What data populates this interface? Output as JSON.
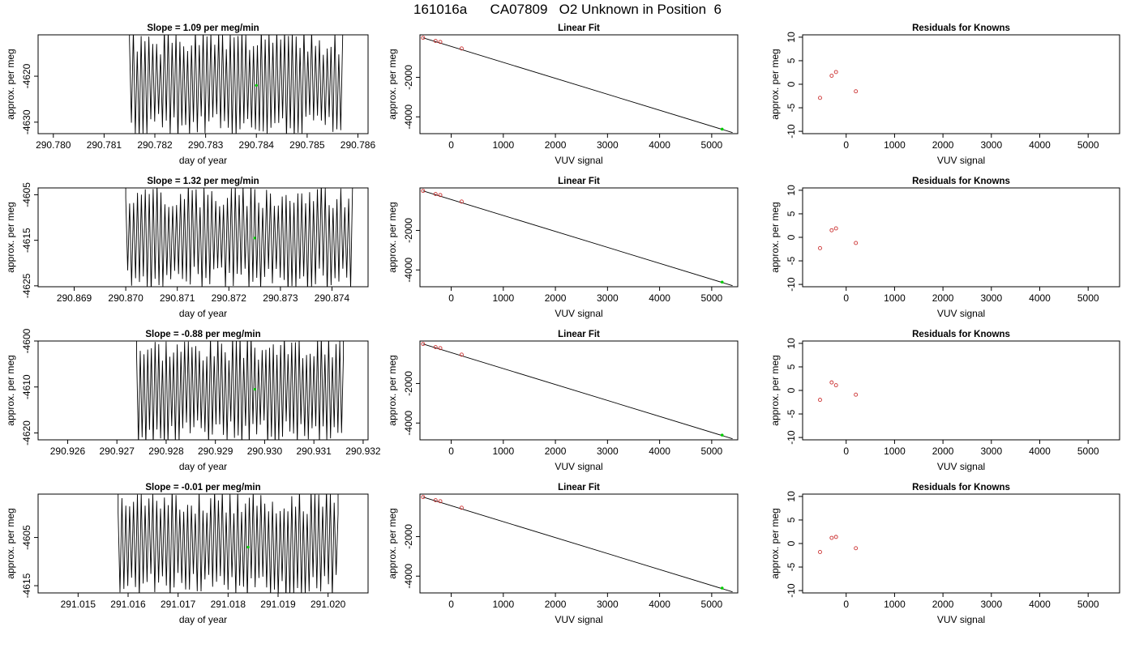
{
  "page_title": "161016a      CA07809   O2 Unknown in Position  6",
  "chart_data": [
    {
      "type": "line",
      "panel": "trace",
      "row": 0,
      "title": "Slope =  1.09  per meg/min",
      "xlabel": "day of year",
      "ylabel": "approx. per meg",
      "xlim": [
        290.7797,
        290.7862
      ],
      "ylim": [
        -4632.5,
        -4611
      ],
      "xticks": [
        290.78,
        290.781,
        290.782,
        290.783,
        290.784,
        290.785,
        290.786
      ],
      "xtick_labels": [
        "290.780",
        "290.781",
        "290.782",
        "290.783",
        "290.784",
        "290.785",
        "290.786"
      ],
      "yticks": [
        -4620,
        -4630
      ],
      "ytick_labels": [
        "-4620",
        "-4630"
      ],
      "trace": {
        "start": 290.7815,
        "end": 290.7857,
        "low": -4632.5,
        "high": -4611,
        "cycles": 55,
        "seed": 1
      },
      "marker": {
        "x": 290.784,
        "y": -4622.0,
        "color": "#00cc00"
      }
    },
    {
      "type": "scatter",
      "panel": "fit",
      "row": 0,
      "title": "Linear Fit",
      "xlabel": "VUV signal",
      "ylabel": "approx. per meg",
      "xlim": [
        -600,
        5500
      ],
      "ylim": [
        -4850,
        150
      ],
      "xticks": [
        0,
        1000,
        2000,
        3000,
        4000,
        5000
      ],
      "xtick_labels": [
        "0",
        "1000",
        "2000",
        "3000",
        "4000",
        "5000"
      ],
      "yticks": [
        -2000,
        -4000
      ],
      "ytick_labels": [
        "-2000",
        "-4000"
      ],
      "points": [
        {
          "x": -540,
          "y": 0
        },
        {
          "x": -300,
          "y": -160
        },
        {
          "x": -210,
          "y": -210
        },
        {
          "x": 200,
          "y": -540
        }
      ],
      "unknown": {
        "x": 5200,
        "y": -4622
      },
      "fit_line": {
        "x": [
          -540,
          5400
        ],
        "y": [
          -2,
          -4795
        ]
      },
      "point_color": "#cc3333",
      "unknown_color": "#00cc00"
    },
    {
      "type": "scatter",
      "panel": "residuals",
      "row": 0,
      "title": "Residuals for Knowns",
      "xlabel": "VUV signal",
      "ylabel": "approx. per meg",
      "xlim": [
        -900,
        5650
      ],
      "ylim": [
        -10.5,
        10.5
      ],
      "xticks": [
        0,
        1000,
        2000,
        3000,
        4000,
        5000
      ],
      "xtick_labels": [
        "0",
        "1000",
        "2000",
        "3000",
        "4000",
        "5000"
      ],
      "yticks": [
        10,
        5,
        0,
        -5,
        -10
      ],
      "ytick_labels": [
        "10",
        "5",
        "0",
        "-5",
        "-10"
      ],
      "points": [
        {
          "x": -540,
          "y": -2.9
        },
        {
          "x": -300,
          "y": 1.8
        },
        {
          "x": -210,
          "y": 2.6
        },
        {
          "x": 200,
          "y": -1.5
        }
      ],
      "point_color": "#cc3333"
    },
    {
      "type": "line",
      "panel": "trace",
      "row": 1,
      "title": "Slope =  1.32  per meg/min",
      "xlabel": "day of year",
      "ylabel": "approx. per meg",
      "xlim": [
        290.8683,
        290.8747
      ],
      "ylim": [
        -4625.2,
        -4603.5
      ],
      "xticks": [
        290.869,
        290.87,
        290.871,
        290.872,
        290.873,
        290.874
      ],
      "xtick_labels": [
        "290.869",
        "290.870",
        "290.871",
        "290.872",
        "290.873",
        "290.874"
      ],
      "yticks": [
        -4605,
        -4615,
        -4625
      ],
      "ytick_labels": [
        "-4605",
        "-4615",
        "-4625"
      ],
      "trace": {
        "start": 290.87,
        "end": 290.8744,
        "low": -4625.2,
        "high": -4603.5,
        "cycles": 58,
        "seed": 2
      },
      "marker": {
        "x": 290.8725,
        "y": -4614.5,
        "color": "#00cc00"
      }
    },
    {
      "type": "scatter",
      "panel": "fit",
      "row": 1,
      "title": "Linear Fit",
      "xlabel": "VUV signal",
      "ylabel": "approx. per meg",
      "xlim": [
        -600,
        5500
      ],
      "ylim": [
        -4850,
        150
      ],
      "xticks": [
        0,
        1000,
        2000,
        3000,
        4000,
        5000
      ],
      "xtick_labels": [
        "0",
        "1000",
        "2000",
        "3000",
        "4000",
        "5000"
      ],
      "yticks": [
        -2000,
        -4000
      ],
      "ytick_labels": [
        "-2000",
        "-4000"
      ],
      "points": [
        {
          "x": -540,
          "y": 0
        },
        {
          "x": -300,
          "y": -160
        },
        {
          "x": -210,
          "y": -210
        },
        {
          "x": 200,
          "y": -540
        }
      ],
      "unknown": {
        "x": 5200,
        "y": -4614
      },
      "fit_line": {
        "x": [
          -540,
          5400
        ],
        "y": [
          -2,
          -4795
        ]
      },
      "point_color": "#cc3333",
      "unknown_color": "#00cc00"
    },
    {
      "type": "scatter",
      "panel": "residuals",
      "row": 1,
      "title": "Residuals for Knowns",
      "xlabel": "VUV signal",
      "ylabel": "approx. per meg",
      "xlim": [
        -900,
        5650
      ],
      "ylim": [
        -10.5,
        10.5
      ],
      "xticks": [
        0,
        1000,
        2000,
        3000,
        4000,
        5000
      ],
      "xtick_labels": [
        "0",
        "1000",
        "2000",
        "3000",
        "4000",
        "5000"
      ],
      "yticks": [
        10,
        5,
        0,
        -5,
        -10
      ],
      "ytick_labels": [
        "10",
        "5",
        "0",
        "-5",
        "-10"
      ],
      "points": [
        {
          "x": -540,
          "y": -2.3
        },
        {
          "x": -300,
          "y": 1.5
        },
        {
          "x": -210,
          "y": 1.9
        },
        {
          "x": 200,
          "y": -1.2
        }
      ],
      "point_color": "#cc3333"
    },
    {
      "type": "line",
      "panel": "trace",
      "row": 2,
      "title": "Slope =  -0.88  per meg/min",
      "xlabel": "day of year",
      "ylabel": "approx. per meg",
      "xlim": [
        290.9254,
        290.9321
      ],
      "ylim": [
        -4621.5,
        -4600
      ],
      "xticks": [
        290.926,
        290.927,
        290.928,
        290.929,
        290.93,
        290.931,
        290.932
      ],
      "xtick_labels": [
        "290.926",
        "290.927",
        "290.928",
        "290.929",
        "290.930",
        "290.931",
        "290.932"
      ],
      "yticks": [
        -4600,
        -4610,
        -4620
      ],
      "ytick_labels": [
        "-4600",
        "-4610",
        "-4620"
      ],
      "trace": {
        "start": 290.9274,
        "end": 290.9316,
        "low": -4621.5,
        "high": -4600,
        "cycles": 56,
        "seed": 3
      },
      "marker": {
        "x": 290.9298,
        "y": -4610.5,
        "color": "#00cc00"
      }
    },
    {
      "type": "scatter",
      "panel": "fit",
      "row": 2,
      "title": "Linear Fit",
      "xlabel": "VUV signal",
      "ylabel": "approx. per meg",
      "xlim": [
        -600,
        5500
      ],
      "ylim": [
        -4850,
        150
      ],
      "xticks": [
        0,
        1000,
        2000,
        3000,
        4000,
        5000
      ],
      "xtick_labels": [
        "0",
        "1000",
        "2000",
        "3000",
        "4000",
        "5000"
      ],
      "yticks": [
        -2000,
        -4000
      ],
      "ytick_labels": [
        "-2000",
        "-4000"
      ],
      "points": [
        {
          "x": -540,
          "y": 0
        },
        {
          "x": -300,
          "y": -160
        },
        {
          "x": -210,
          "y": -210
        },
        {
          "x": 200,
          "y": -540
        }
      ],
      "unknown": {
        "x": 5200,
        "y": -4610
      },
      "fit_line": {
        "x": [
          -540,
          5400
        ],
        "y": [
          -2,
          -4795
        ]
      },
      "point_color": "#cc3333",
      "unknown_color": "#00cc00"
    },
    {
      "type": "scatter",
      "panel": "residuals",
      "row": 2,
      "title": "Residuals for Knowns",
      "xlabel": "VUV signal",
      "ylabel": "approx. per meg",
      "xlim": [
        -900,
        5650
      ],
      "ylim": [
        -10.5,
        10.5
      ],
      "xticks": [
        0,
        1000,
        2000,
        3000,
        4000,
        5000
      ],
      "xtick_labels": [
        "0",
        "1000",
        "2000",
        "3000",
        "4000",
        "5000"
      ],
      "yticks": [
        10,
        5,
        0,
        -5,
        -10
      ],
      "ytick_labels": [
        "10",
        "5",
        "0",
        "-5",
        "-10"
      ],
      "points": [
        {
          "x": -540,
          "y": -2.0
        },
        {
          "x": -300,
          "y": 1.7
        },
        {
          "x": -210,
          "y": 1.1
        },
        {
          "x": 200,
          "y": -0.9
        }
      ],
      "point_color": "#cc3333"
    },
    {
      "type": "line",
      "panel": "trace",
      "row": 3,
      "title": "Slope =  -0.01  per meg/min",
      "xlabel": "day of year",
      "ylabel": "approx. per meg",
      "xlim": [
        291.0142,
        291.0208
      ],
      "ylim": [
        -4616.5,
        -4596
      ],
      "xticks": [
        291.015,
        291.016,
        291.017,
        291.018,
        291.019,
        291.02
      ],
      "xtick_labels": [
        "291.015",
        "291.016",
        "291.017",
        "291.018",
        "291.019",
        "291.020"
      ],
      "yticks": [
        -4605,
        -4615
      ],
      "ytick_labels": [
        "-4605",
        "-4615"
      ],
      "trace": {
        "start": 291.0158,
        "end": 291.0202,
        "low": -4616.5,
        "high": -4596,
        "cycles": 57,
        "seed": 4
      },
      "marker": {
        "x": 291.0184,
        "y": -4607.0,
        "color": "#00cc00"
      }
    },
    {
      "type": "scatter",
      "panel": "fit",
      "row": 3,
      "title": "Linear Fit",
      "xlabel": "VUV signal",
      "ylabel": "approx. per meg",
      "xlim": [
        -600,
        5500
      ],
      "ylim": [
        -4850,
        150
      ],
      "xticks": [
        0,
        1000,
        2000,
        3000,
        4000,
        5000
      ],
      "xtick_labels": [
        "0",
        "1000",
        "2000",
        "3000",
        "4000",
        "5000"
      ],
      "yticks": [
        -2000,
        -4000
      ],
      "ytick_labels": [
        "-2000",
        "-4000"
      ],
      "points": [
        {
          "x": -540,
          "y": 0
        },
        {
          "x": -300,
          "y": -160
        },
        {
          "x": -210,
          "y": -210
        },
        {
          "x": 200,
          "y": -540
        }
      ],
      "unknown": {
        "x": 5200,
        "y": -4607
      },
      "fit_line": {
        "x": [
          -540,
          5400
        ],
        "y": [
          -2,
          -4795
        ]
      },
      "point_color": "#cc3333",
      "unknown_color": "#00cc00"
    },
    {
      "type": "scatter",
      "panel": "residuals",
      "row": 3,
      "title": "Residuals for Knowns",
      "xlabel": "VUV signal",
      "ylabel": "approx. per meg",
      "xlim": [
        -900,
        5650
      ],
      "ylim": [
        -10.5,
        10.5
      ],
      "xticks": [
        0,
        1000,
        2000,
        3000,
        4000,
        5000
      ],
      "xtick_labels": [
        "0",
        "1000",
        "2000",
        "3000",
        "4000",
        "5000"
      ],
      "yticks": [
        10,
        5,
        0,
        -5,
        -10
      ],
      "ytick_labels": [
        "10",
        "5",
        "0",
        "-5",
        "-10"
      ],
      "points": [
        {
          "x": -540,
          "y": -1.8
        },
        {
          "x": -300,
          "y": 1.2
        },
        {
          "x": -210,
          "y": 1.4
        },
        {
          "x": 200,
          "y": -1.0
        }
      ],
      "point_color": "#cc3333"
    }
  ]
}
